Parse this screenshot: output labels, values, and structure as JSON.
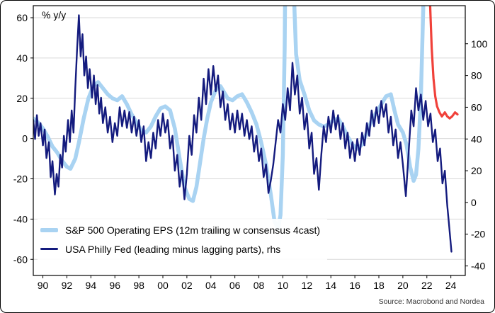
{
  "chart_data": {
    "type": "line",
    "unit_label": "% y/y",
    "source": "Source: Macrobond and Nordea",
    "x_range": [
      1989.2,
      2025.2
    ],
    "x_ticks": [
      1990,
      1992,
      1994,
      1996,
      1998,
      2000,
      2002,
      2004,
      2006,
      2008,
      2010,
      2012,
      2014,
      2016,
      2018,
      2020,
      2022,
      2024
    ],
    "x_tick_labels": [
      "90",
      "92",
      "94",
      "96",
      "98",
      "00",
      "02",
      "04",
      "06",
      "08",
      "10",
      "12",
      "14",
      "16",
      "18",
      "20",
      "22",
      "24"
    ],
    "left_axis": {
      "min": -68,
      "max": 66,
      "ticks": [
        60,
        40,
        20,
        0,
        -20,
        -40,
        -60
      ]
    },
    "right_axis": {
      "min": -46,
      "max": 124,
      "ticks": [
        100,
        80,
        60,
        40,
        20,
        0,
        -20,
        -40
      ]
    },
    "grid": "horizontal",
    "legend_position": "inside-bottom-left",
    "colors": {
      "grid": "#d9d9d9",
      "frame": "#000000",
      "eps": "#a9d3f2",
      "philly": "#141b7e",
      "forecast": "#f0413a",
      "text": "#000000"
    },
    "legend": [
      {
        "label": "S&P 500 Operating EPS (12m trailing w consensus 4cast)",
        "series": "eps"
      },
      {
        "label": "USA Philly Fed (leading minus lagging parts), rhs",
        "series": "philly"
      }
    ],
    "series": [
      {
        "id": "eps",
        "axis": "left",
        "color": "#a9d3f2",
        "width": 5.5,
        "points": [
          [
            1989.2,
            10
          ],
          [
            1989.6,
            8
          ],
          [
            1990,
            5
          ],
          [
            1990.4,
            1
          ],
          [
            1990.8,
            -4
          ],
          [
            1991.2,
            -7
          ],
          [
            1991.6,
            -11
          ],
          [
            1992,
            -14
          ],
          [
            1992.3,
            -15
          ],
          [
            1992.7,
            -10
          ],
          [
            1993,
            -2
          ],
          [
            1993.4,
            10
          ],
          [
            1993.8,
            20
          ],
          [
            1994.2,
            26
          ],
          [
            1994.6,
            28
          ],
          [
            1995,
            25
          ],
          [
            1995.4,
            22
          ],
          [
            1995.8,
            20
          ],
          [
            1996.2,
            19
          ],
          [
            1996.6,
            21
          ],
          [
            1997,
            17
          ],
          [
            1997.4,
            12
          ],
          [
            1997.8,
            8
          ],
          [
            1998.2,
            4
          ],
          [
            1998.6,
            3
          ],
          [
            1999,
            6
          ],
          [
            1999.4,
            11
          ],
          [
            1999.8,
            15
          ],
          [
            2000.2,
            16
          ],
          [
            2000.6,
            14
          ],
          [
            2001,
            5
          ],
          [
            2001.4,
            -10
          ],
          [
            2001.8,
            -24
          ],
          [
            2002.2,
            -30
          ],
          [
            2002.5,
            -31
          ],
          [
            2002.8,
            -24
          ],
          [
            2003.1,
            -12
          ],
          [
            2003.4,
            0
          ],
          [
            2003.7,
            10
          ],
          [
            2004,
            18
          ],
          [
            2004.4,
            24
          ],
          [
            2004.8,
            26
          ],
          [
            2005.1,
            23
          ],
          [
            2005.4,
            20
          ],
          [
            2005.8,
            19
          ],
          [
            2006.2,
            21
          ],
          [
            2006.6,
            22
          ],
          [
            2007,
            18
          ],
          [
            2007.4,
            13
          ],
          [
            2007.8,
            7
          ],
          [
            2008.2,
            -2
          ],
          [
            2008.6,
            -13
          ],
          [
            2009,
            -28
          ],
          [
            2009.3,
            -41
          ],
          [
            2009.6,
            -45
          ],
          [
            2009.8,
            -38
          ],
          [
            2010,
            -8
          ],
          [
            2010.15,
            45
          ],
          [
            2010.3,
            160
          ],
          [
            2010.7,
            160
          ],
          [
            2010.9,
            75
          ],
          [
            2011.1,
            42
          ],
          [
            2011.4,
            29
          ],
          [
            2011.8,
            22
          ],
          [
            2012.2,
            14
          ],
          [
            2012.6,
            9
          ],
          [
            2013,
            7
          ],
          [
            2013.4,
            6
          ],
          [
            2013.8,
            7
          ],
          [
            2014.2,
            9
          ],
          [
            2014.6,
            10
          ],
          [
            2015,
            6
          ],
          [
            2015.4,
            1
          ],
          [
            2015.8,
            -3
          ],
          [
            2016.2,
            -5
          ],
          [
            2016.6,
            -3
          ],
          [
            2017,
            3
          ],
          [
            2017.4,
            9
          ],
          [
            2017.8,
            13
          ],
          [
            2018.2,
            17
          ],
          [
            2018.6,
            21
          ],
          [
            2019,
            22
          ],
          [
            2019.3,
            14
          ],
          [
            2019.6,
            7
          ],
          [
            2020,
            3
          ],
          [
            2020.3,
            -3
          ],
          [
            2020.6,
            -14
          ],
          [
            2020.9,
            -21
          ],
          [
            2021.1,
            -18
          ],
          [
            2021.3,
            -5
          ],
          [
            2021.5,
            20
          ],
          [
            2021.7,
            65
          ],
          [
            2021.85,
            160
          ],
          [
            2022.35,
            160
          ]
        ]
      },
      {
        "id": "philly",
        "axis": "right",
        "color": "#141b7e",
        "width": 2.4,
        "points": [
          [
            1989.2,
            52
          ],
          [
            1989.35,
            40
          ],
          [
            1989.5,
            55
          ],
          [
            1989.65,
            42
          ],
          [
            1989.8,
            50
          ],
          [
            1990,
            36
          ],
          [
            1990.15,
            46
          ],
          [
            1990.3,
            28
          ],
          [
            1990.5,
            38
          ],
          [
            1990.65,
            16
          ],
          [
            1990.8,
            26
          ],
          [
            1991,
            5
          ],
          [
            1991.15,
            18
          ],
          [
            1991.3,
            10
          ],
          [
            1991.45,
            30
          ],
          [
            1991.6,
            22
          ],
          [
            1991.75,
            42
          ],
          [
            1991.9,
            32
          ],
          [
            1992.1,
            52
          ],
          [
            1992.25,
            38
          ],
          [
            1992.4,
            58
          ],
          [
            1992.55,
            44
          ],
          [
            1992.7,
            72
          ],
          [
            1992.85,
            96
          ],
          [
            1993,
            118
          ],
          [
            1993.15,
            92
          ],
          [
            1993.3,
            106
          ],
          [
            1993.45,
            80
          ],
          [
            1993.6,
            92
          ],
          [
            1993.75,
            72
          ],
          [
            1993.9,
            84
          ],
          [
            1994.1,
            66
          ],
          [
            1994.25,
            80
          ],
          [
            1994.4,
            62
          ],
          [
            1994.55,
            74
          ],
          [
            1994.7,
            56
          ],
          [
            1994.85,
            66
          ],
          [
            1995,
            50
          ],
          [
            1995.2,
            60
          ],
          [
            1995.4,
            44
          ],
          [
            1995.6,
            54
          ],
          [
            1995.8,
            38
          ],
          [
            1996,
            50
          ],
          [
            1996.2,
            42
          ],
          [
            1996.4,
            60
          ],
          [
            1996.6,
            48
          ],
          [
            1996.8,
            58
          ],
          [
            1997,
            47
          ],
          [
            1997.2,
            57
          ],
          [
            1997.4,
            44
          ],
          [
            1997.6,
            54
          ],
          [
            1997.8,
            42
          ],
          [
            1998,
            52
          ],
          [
            1998.2,
            38
          ],
          [
            1998.4,
            48
          ],
          [
            1998.6,
            26
          ],
          [
            1998.8,
            38
          ],
          [
            1999,
            28
          ],
          [
            1999.2,
            44
          ],
          [
            1999.4,
            34
          ],
          [
            1999.6,
            52
          ],
          [
            1999.8,
            42
          ],
          [
            2000,
            56
          ],
          [
            2000.2,
            44
          ],
          [
            2000.4,
            52
          ],
          [
            2000.6,
            34
          ],
          [
            2000.8,
            42
          ],
          [
            2001,
            20
          ],
          [
            2001.2,
            30
          ],
          [
            2001.4,
            10
          ],
          [
            2001.6,
            20
          ],
          [
            2001.8,
            2
          ],
          [
            2002,
            18
          ],
          [
            2002.2,
            42
          ],
          [
            2002.4,
            30
          ],
          [
            2002.6,
            55
          ],
          [
            2002.8,
            44
          ],
          [
            2003,
            66
          ],
          [
            2003.2,
            52
          ],
          [
            2003.4,
            78
          ],
          [
            2003.6,
            62
          ],
          [
            2003.8,
            84
          ],
          [
            2004,
            68
          ],
          [
            2004.2,
            86
          ],
          [
            2004.4,
            70
          ],
          [
            2004.6,
            80
          ],
          [
            2004.8,
            60
          ],
          [
            2005,
            70
          ],
          [
            2005.2,
            52
          ],
          [
            2005.4,
            62
          ],
          [
            2005.6,
            46
          ],
          [
            2005.8,
            56
          ],
          [
            2006,
            44
          ],
          [
            2006.2,
            58
          ],
          [
            2006.4,
            46
          ],
          [
            2006.6,
            56
          ],
          [
            2006.8,
            42
          ],
          [
            2007,
            52
          ],
          [
            2007.2,
            40
          ],
          [
            2007.4,
            48
          ],
          [
            2007.6,
            32
          ],
          [
            2007.8,
            42
          ],
          [
            2008,
            26
          ],
          [
            2008.2,
            34
          ],
          [
            2008.4,
            16
          ],
          [
            2008.6,
            24
          ],
          [
            2008.8,
            6
          ],
          [
            2009,
            14
          ],
          [
            2009.2,
            24
          ],
          [
            2009.4,
            38
          ],
          [
            2009.6,
            52
          ],
          [
            2009.8,
            44
          ],
          [
            2010,
            62
          ],
          [
            2010.2,
            52
          ],
          [
            2010.4,
            72
          ],
          [
            2010.6,
            58
          ],
          [
            2010.8,
            88
          ],
          [
            2011,
            68
          ],
          [
            2011.2,
            80
          ],
          [
            2011.4,
            56
          ],
          [
            2011.6,
            66
          ],
          [
            2011.8,
            46
          ],
          [
            2012,
            56
          ],
          [
            2012.2,
            34
          ],
          [
            2012.4,
            44
          ],
          [
            2012.6,
            18
          ],
          [
            2012.8,
            28
          ],
          [
            2013,
            8
          ],
          [
            2013.2,
            30
          ],
          [
            2013.4,
            48
          ],
          [
            2013.6,
            38
          ],
          [
            2013.8,
            54
          ],
          [
            2014,
            44
          ],
          [
            2014.2,
            58
          ],
          [
            2014.4,
            46
          ],
          [
            2014.6,
            55
          ],
          [
            2014.8,
            40
          ],
          [
            2015,
            50
          ],
          [
            2015.2,
            34
          ],
          [
            2015.4,
            44
          ],
          [
            2015.6,
            28
          ],
          [
            2015.8,
            38
          ],
          [
            2016,
            26
          ],
          [
            2016.2,
            40
          ],
          [
            2016.4,
            30
          ],
          [
            2016.6,
            44
          ],
          [
            2016.8,
            36
          ],
          [
            2017,
            50
          ],
          [
            2017.2,
            42
          ],
          [
            2017.4,
            58
          ],
          [
            2017.6,
            48
          ],
          [
            2017.8,
            60
          ],
          [
            2018,
            50
          ],
          [
            2018.2,
            64
          ],
          [
            2018.4,
            54
          ],
          [
            2018.6,
            62
          ],
          [
            2018.8,
            44
          ],
          [
            2019,
            54
          ],
          [
            2019.2,
            36
          ],
          [
            2019.4,
            46
          ],
          [
            2019.6,
            28
          ],
          [
            2019.8,
            38
          ],
          [
            2020,
            24
          ],
          [
            2020.25,
            4
          ],
          [
            2020.5,
            34
          ],
          [
            2020.7,
            58
          ],
          [
            2020.9,
            48
          ],
          [
            2021.1,
            72
          ],
          [
            2021.3,
            58
          ],
          [
            2021.5,
            68
          ],
          [
            2021.7,
            52
          ],
          [
            2021.9,
            64
          ],
          [
            2022.1,
            48
          ],
          [
            2022.3,
            56
          ],
          [
            2022.5,
            38
          ],
          [
            2022.7,
            46
          ],
          [
            2022.9,
            26
          ],
          [
            2023.1,
            34
          ],
          [
            2023.3,
            12
          ],
          [
            2023.5,
            20
          ],
          [
            2023.7,
            -2
          ],
          [
            2023.85,
            -14
          ],
          [
            2024.05,
            -31
          ]
        ]
      },
      {
        "id": "forecast",
        "axis": "left",
        "color": "#f0413a",
        "width": 3.2,
        "points": [
          [
            2022.1,
            160
          ],
          [
            2022.25,
            70
          ],
          [
            2022.4,
            45
          ],
          [
            2022.55,
            30
          ],
          [
            2022.7,
            21
          ],
          [
            2022.85,
            16
          ],
          [
            2023.05,
            13
          ],
          [
            2023.25,
            11
          ],
          [
            2023.5,
            13
          ],
          [
            2023.7,
            11
          ],
          [
            2023.9,
            10
          ],
          [
            2024.1,
            11
          ],
          [
            2024.35,
            13
          ],
          [
            2024.55,
            12
          ]
        ]
      }
    ]
  }
}
